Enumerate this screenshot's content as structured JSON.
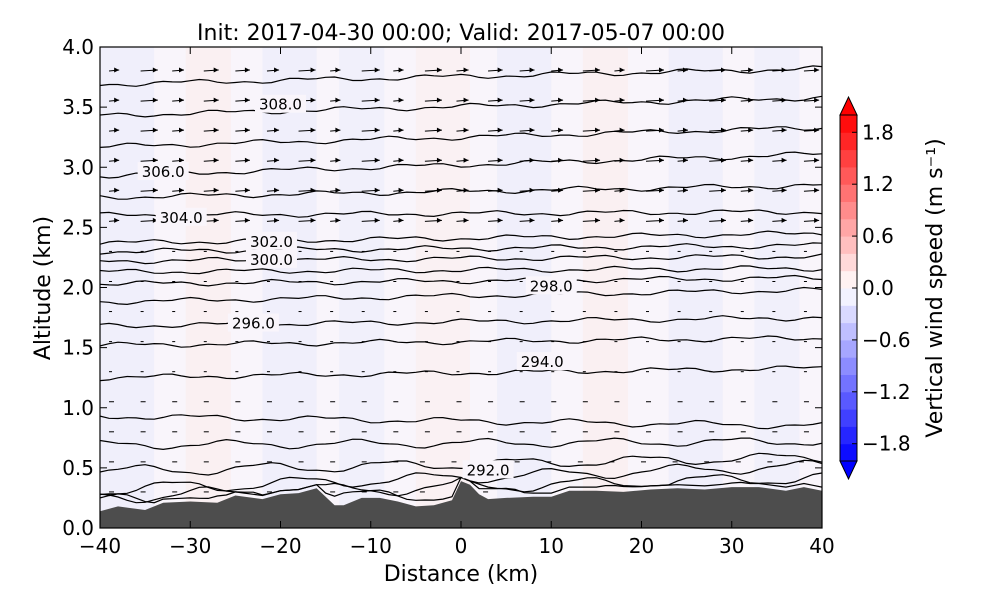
{
  "chart_data": {
    "type": "contour",
    "title": "Init: 2017-04-30 00:00; Valid: 2017-05-07 00:00",
    "xlabel": "Distance (km)",
    "ylabel": "Altitude (km)",
    "xlim": [
      -40,
      40
    ],
    "ylim": [
      0.0,
      4.0
    ],
    "x_ticks": [
      "−40",
      "−30",
      "−20",
      "−10",
      "0",
      "10",
      "20",
      "30",
      "40"
    ],
    "y_ticks": [
      "0.0",
      "0.5",
      "1.0",
      "1.5",
      "2.0",
      "2.5",
      "3.0",
      "3.5",
      "4.0"
    ],
    "grid": false,
    "colorbar": {
      "label": "Vertical wind speed (m s⁻¹)",
      "range": [
        -2.0,
        2.0
      ],
      "ticks": [
        "−1.8",
        "−1.2",
        "−0.6",
        "0.0",
        "0.6",
        "1.2",
        "1.8"
      ],
      "colormap": "bwr",
      "extend": "both"
    },
    "terrain": {
      "color": "#4d4d4d",
      "x": [
        -40,
        -38,
        -35,
        -33,
        -30,
        -27,
        -25,
        -22,
        -20,
        -18,
        -16,
        -14,
        -13,
        -11,
        -9,
        -7,
        -5,
        -3,
        -1,
        0,
        1,
        2,
        3,
        5,
        8,
        10,
        12,
        15,
        18,
        21,
        24,
        27,
        30,
        33,
        36,
        38,
        40
      ],
      "altitude": [
        0.14,
        0.18,
        0.15,
        0.21,
        0.22,
        0.21,
        0.27,
        0.24,
        0.28,
        0.29,
        0.33,
        0.19,
        0.19,
        0.25,
        0.25,
        0.22,
        0.18,
        0.19,
        0.23,
        0.39,
        0.36,
        0.28,
        0.24,
        0.25,
        0.26,
        0.26,
        0.31,
        0.31,
        0.3,
        0.32,
        0.33,
        0.32,
        0.34,
        0.34,
        0.31,
        0.34,
        0.31
      ]
    },
    "contour_lines": [
      {
        "left": 0.22,
        "right": 0.34
      },
      {
        "left": 0.26,
        "right": 0.42
      },
      {
        "left": 0.32,
        "right": 0.52
      },
      {
        "left": 0.47,
        "right": 0.59
      },
      {
        "left": 0.69,
        "right": 0.72
      },
      {
        "left": 0.93,
        "right": 0.85
      },
      {
        "left": 1.25,
        "right": 1.33
      },
      {
        "left": 1.52,
        "right": 1.58
      },
      {
        "left": 1.68,
        "right": 1.75
      },
      {
        "left": 1.88,
        "right": 1.98
      },
      {
        "left": 2.03,
        "right": 2.08
      },
      {
        "left": 2.13,
        "right": 2.16
      },
      {
        "left": 2.22,
        "right": 2.26
      },
      {
        "left": 2.3,
        "right": 2.35
      },
      {
        "left": 2.37,
        "right": 2.45
      },
      {
        "left": 2.6,
        "right": 2.63
      },
      {
        "left": 2.75,
        "right": 2.85
      },
      {
        "left": 2.93,
        "right": 3.11
      },
      {
        "left": 3.17,
        "right": 3.33
      },
      {
        "left": 3.43,
        "right": 3.58
      },
      {
        "left": 3.69,
        "right": 3.82
      }
    ],
    "contour_labels": [
      {
        "text": "308.0",
        "x": -20.0,
        "y": 3.52
      },
      {
        "text": "306.0",
        "x": -33.0,
        "y": 2.96
      },
      {
        "text": "304.0",
        "x": -31.0,
        "y": 2.58
      },
      {
        "text": "302.0",
        "x": -21.0,
        "y": 2.38
      },
      {
        "text": "300.0",
        "x": -21.0,
        "y": 2.23
      },
      {
        "text": "298.0",
        "x": 10.0,
        "y": 2.01
      },
      {
        "text": "296.0",
        "x": -23.0,
        "y": 1.7
      },
      {
        "text": "294.0",
        "x": 9.0,
        "y": 1.38
      },
      {
        "text": "292.0",
        "x": 3.0,
        "y": 0.48
      }
    ]
  }
}
